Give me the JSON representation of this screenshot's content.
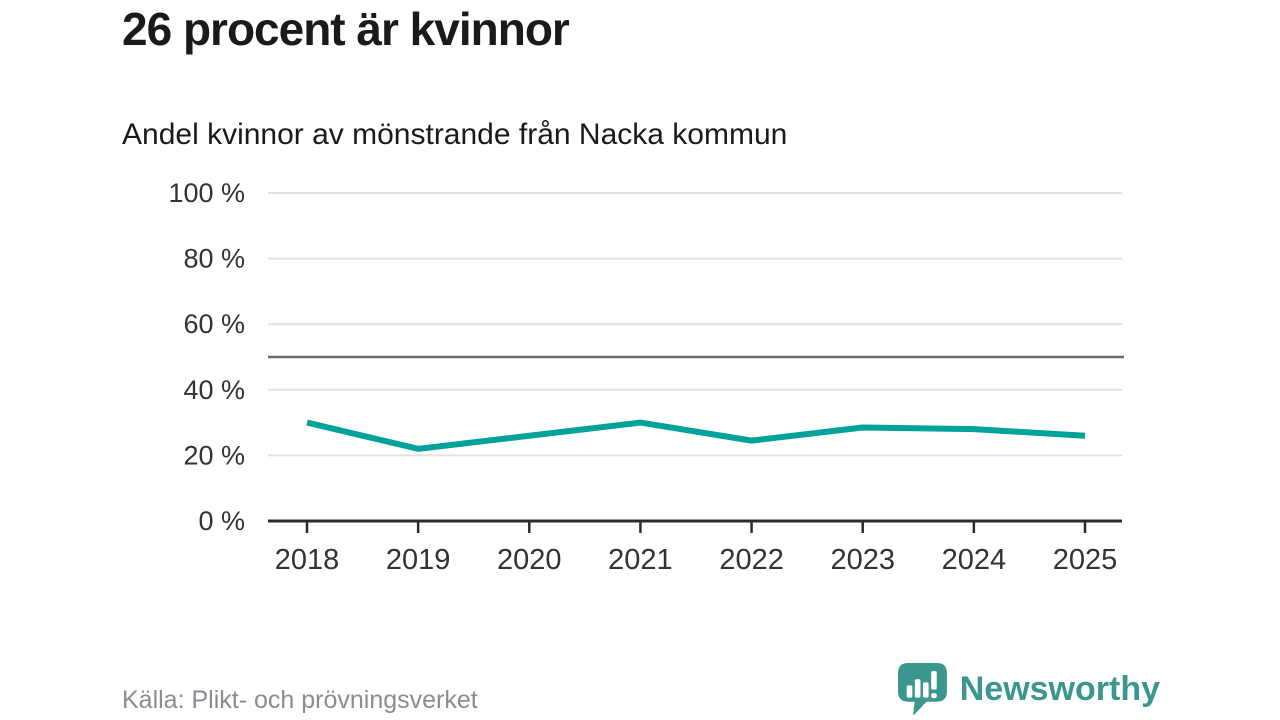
{
  "header": {
    "title": "26 procent är kvinnor",
    "subtitle": "Andel kvinnor av mönstrande från Nacka kommun"
  },
  "chart_data": {
    "type": "line",
    "title": "Andel kvinnor av mönstrande från Nacka kommun",
    "x": [
      "2018",
      "2019",
      "2020",
      "2021",
      "2022",
      "2023",
      "2024",
      "2025"
    ],
    "series": [
      {
        "name": "Andel kvinnor",
        "values": [
          30,
          22,
          26,
          30,
          24.5,
          28.5,
          28,
          26
        ]
      }
    ],
    "xlabel": "",
    "ylabel": "",
    "ylim": [
      0,
      100
    ],
    "yticks": [
      0,
      20,
      40,
      60,
      80,
      100
    ],
    "ytick_suffix": " %",
    "reference_line": 50,
    "grid": "horizontal-only",
    "legend": "none",
    "last_value_pct": 26
  },
  "colors": {
    "line": "#00a29a",
    "reference_line": "#6a6a74",
    "axis": "#2b2b2b",
    "gridline": "#e1e1e1",
    "tick_label": "#333333",
    "title_text": "#1a1a1a",
    "source_text": "#8b8b93",
    "brand_teal": "#3b968f"
  },
  "footer": {
    "source": "Källa: Plikt- och prövningsverket",
    "brand": "Newsworthy"
  },
  "icons": {
    "brand_logo": "newsworthy-speech-bubble-bar-chart-icon"
  }
}
